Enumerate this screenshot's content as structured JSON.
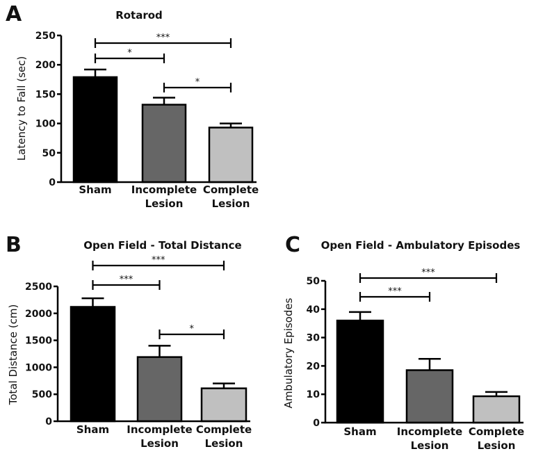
{
  "chart_data": [
    {
      "panel_label": "A",
      "type": "bar",
      "title": "Rotarod",
      "ylabel": "Latency to Fall (sec)",
      "xlabel": "",
      "ylim": [
        0,
        250
      ],
      "yticks": [
        0,
        50,
        100,
        150,
        200,
        250
      ],
      "categories": [
        [
          "Sham"
        ],
        [
          "Incomplete",
          "Lesion"
        ],
        [
          "Complete",
          "Lesion"
        ]
      ],
      "values": [
        179,
        132,
        93
      ],
      "errors": [
        13,
        12,
        7
      ],
      "bar_colors": [
        "#000000",
        "#666666",
        "#c0c0c0"
      ],
      "significance": [
        {
          "from": 0,
          "to": 2,
          "label": "***"
        },
        {
          "from": 0,
          "to": 1,
          "label": "*"
        },
        {
          "from": 1,
          "to": 2,
          "label": "*"
        }
      ]
    },
    {
      "panel_label": "B",
      "type": "bar",
      "title": "Open Field - Total Distance",
      "ylabel": "Total Distance (cm)",
      "xlabel": "",
      "ylim": [
        0,
        2500
      ],
      "yticks": [
        0,
        500,
        1000,
        1500,
        2000,
        2500
      ],
      "categories": [
        [
          "Sham"
        ],
        [
          "Incomplete",
          "Lesion"
        ],
        [
          "Complete",
          "Lesion"
        ]
      ],
      "values": [
        2120,
        1190,
        610
      ],
      "errors": [
        160,
        210,
        90
      ],
      "bar_colors": [
        "#000000",
        "#666666",
        "#c0c0c0"
      ],
      "significance": [
        {
          "from": 0,
          "to": 2,
          "label": "***"
        },
        {
          "from": 0,
          "to": 1,
          "label": "***"
        },
        {
          "from": 1,
          "to": 2,
          "label": "*"
        }
      ]
    },
    {
      "panel_label": "C",
      "type": "bar",
      "title": "Open Field - Ambulatory Episodes",
      "ylabel": "Ambulatory Episodes",
      "xlabel": "",
      "ylim": [
        0,
        50
      ],
      "yticks": [
        0,
        10,
        20,
        30,
        40,
        50
      ],
      "categories": [
        [
          "Sham"
        ],
        [
          "Incomplete",
          "Lesion"
        ],
        [
          "Complete",
          "Lesion"
        ]
      ],
      "values": [
        36,
        18.5,
        9.3
      ],
      "errors": [
        3,
        4,
        1.5
      ],
      "bar_colors": [
        "#000000",
        "#666666",
        "#c0c0c0"
      ],
      "significance": [
        {
          "from": 0,
          "to": 2,
          "label": "***"
        },
        {
          "from": 0,
          "to": 1,
          "label": "***"
        }
      ]
    }
  ]
}
